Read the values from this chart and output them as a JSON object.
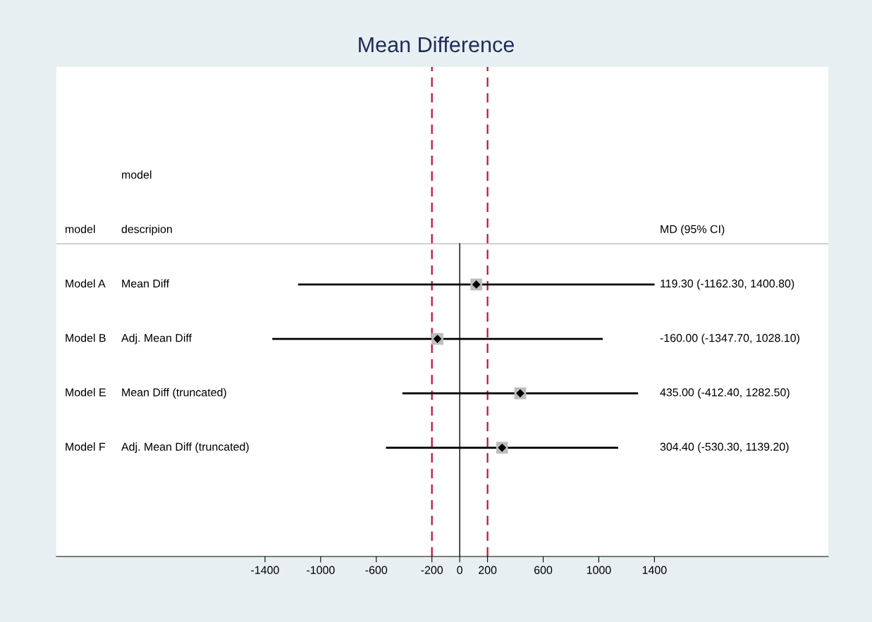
{
  "chart_data": {
    "type": "scatter",
    "orientation": "horizontal",
    "title": "Mean Difference",
    "categories": [
      "Model A",
      "Model B",
      "Model E",
      "Model F"
    ],
    "series": [
      {
        "color": "#000000",
        "values": [
          119.3,
          -160.0,
          435.0,
          304.4
        ],
        "errors": [
          [
            -1162.3,
            1400.8
          ],
          [
            -1347.7,
            1028.1
          ],
          [
            -412.4,
            1282.5
          ],
          [
            -530.3,
            1139.2
          ]
        ]
      }
    ],
    "annotations": [
      "model",
      "model",
      "descripion",
      "MD (95% CI)",
      "Mean Diff",
      "Adj. Mean Diff",
      "Mean Diff (truncated)",
      "Adj. Mean Diff (truncated)",
      "119.30 (-1162.30, 1400.80)",
      "-160.00 (-1347.70, 1028.10)",
      "435.00 (-412.40, 1282.50)",
      "304.40 (-530.30, 1139.20)"
    ],
    "xlim": [
      -2900,
      2650
    ],
    "xticks": [
      -1400,
      -1000,
      -600,
      -200,
      0,
      200,
      600,
      1000,
      1400
    ],
    "ref_lines": [
      {
        "axis": "x",
        "value": -200,
        "color": "#c8102e",
        "line_style": "dashed"
      },
      {
        "axis": "x",
        "value": 200,
        "color": "#c8102e",
        "line_style": "dashed"
      },
      {
        "axis": "x",
        "value": 0,
        "color": "#000000",
        "line_style": "solid"
      }
    ],
    "marker": "diamond",
    "grid": false,
    "tick_labels": "x"
  }
}
